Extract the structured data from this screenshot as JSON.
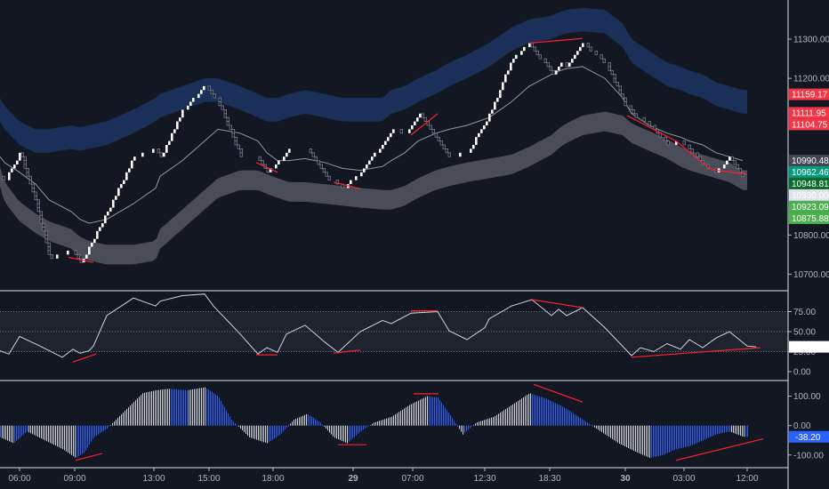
{
  "colors": {
    "background": "#131722",
    "separator": "#e0e3eb",
    "renko_up": "#ffffff",
    "renko_down": "#787b86",
    "divergence": "#ff1f2e",
    "upper_band": "#1e3a6b",
    "lower_band": "#5d606b",
    "ma": "#9598a1",
    "hist_positive": "#d1d4dc",
    "hist_negative": "#2962ff",
    "axis_text": "#b2b5be"
  },
  "chart_data": [
    {
      "type": "line",
      "panel": "price",
      "y_ticks": [
        "11300.00",
        "11200.00",
        "10800.00",
        "10700.00"
      ],
      "y_range": [
        10660,
        11400
      ],
      "price_tags": [
        {
          "label": "11159.17",
          "value": 11159.17,
          "color": "#f23645"
        },
        {
          "label": "11111.95",
          "value": 11111.95,
          "color": "#f23645"
        },
        {
          "label": "11104.75",
          "value": 11104.75,
          "color": "#f23645"
        },
        {
          "label": "10990.48",
          "value": 10990.48,
          "color": "#434651"
        },
        {
          "label": "10962.46",
          "value": 10962.46,
          "color": "#089981"
        },
        {
          "label": "10948.81",
          "value": 10948.81,
          "color": "#0b6b2e"
        },
        {
          "label": "10930.00",
          "value": 10930.0,
          "color": "#e0e3eb",
          "text_color": "#131722"
        },
        {
          "label": "10923.09",
          "value": 10923.09,
          "color": "#4caf50"
        },
        {
          "label": "10875.88",
          "value": 10875.88,
          "color": "#4caf50"
        }
      ],
      "x": [
        0,
        5,
        22,
        40,
        55,
        80,
        90,
        100,
        120,
        150,
        175,
        180,
        205,
        230,
        245,
        270,
        290,
        300,
        312,
        325,
        343,
        365,
        385,
        405,
        430,
        440,
        455,
        470,
        490,
        505,
        525,
        550,
        575,
        595,
        620,
        630,
        637,
        655,
        680,
        700,
        710,
        730,
        750,
        765,
        775,
        790,
        805,
        820,
        835
      ],
      "close": [
        10950,
        10940,
        11010,
        10880,
        10740,
        10760,
        10730,
        10770,
        10860,
        11000,
        11020,
        11000,
        11120,
        11180,
        11140,
        11000,
        10995,
        10960,
        10985,
        11020,
        11025,
        10950,
        10920,
        10960,
        11035,
        11070,
        11060,
        11110,
        11050,
        11000,
        11010,
        11110,
        11250,
        11290,
        11210,
        11240,
        11230,
        11290,
        11240,
        11140,
        11110,
        11080,
        11030,
        11040,
        11020,
        10980,
        10960,
        11000,
        10950
      ],
      "upper_band": [
        11120,
        11100,
        11060,
        11040,
        11040,
        11050,
        11045,
        11050,
        11060,
        11090,
        11120,
        11130,
        11150,
        11170,
        11170,
        11150,
        11130,
        11120,
        11120,
        11130,
        11140,
        11130,
        11120,
        11120,
        11120,
        11140,
        11150,
        11170,
        11190,
        11210,
        11230,
        11260,
        11300,
        11320,
        11330,
        11340,
        11345,
        11350,
        11345,
        11310,
        11270,
        11240,
        11210,
        11200,
        11190,
        11180,
        11160,
        11150,
        11140
      ],
      "lower_band": [
        10950,
        10910,
        10860,
        10830,
        10810,
        10790,
        10770,
        10760,
        10750,
        10750,
        10760,
        10790,
        10840,
        10890,
        10920,
        10940,
        10940,
        10930,
        10920,
        10910,
        10910,
        10905,
        10900,
        10895,
        10890,
        10890,
        10900,
        10920,
        10940,
        10950,
        10960,
        10970,
        10980,
        11000,
        11030,
        11050,
        11060,
        11080,
        11090,
        11080,
        11060,
        11040,
        11020,
        11000,
        10990,
        10980,
        10970,
        10960,
        10940
      ],
      "ma": [
        11000,
        10985,
        10960,
        10930,
        10890,
        10860,
        10840,
        10830,
        10840,
        10880,
        10920,
        10950,
        10990,
        11040,
        11070,
        11060,
        11040,
        11010,
        10990,
        10990,
        10995,
        10985,
        10970,
        10965,
        10975,
        10990,
        11010,
        11040,
        11060,
        11070,
        11080,
        11100,
        11140,
        11180,
        11210,
        11220,
        11225,
        11230,
        11200,
        11150,
        11110,
        11080,
        11060,
        11050,
        11040,
        11030,
        11010,
        11000,
        10990
      ],
      "divergences": [
        {
          "x": [
            77,
            105
          ],
          "y": [
            10743,
            10730
          ]
        },
        {
          "x": [
            288,
            312
          ],
          "y": [
            10985,
            10960
          ]
        },
        {
          "x": [
            375,
            405
          ],
          "y": [
            10935,
            10918
          ]
        },
        {
          "x": [
            462,
            492
          ],
          "y": [
            11055,
            11110
          ]
        },
        {
          "x": [
            595,
            655
          ],
          "y": [
            11290,
            11302
          ]
        },
        {
          "x": [
            705,
            760,
            800,
            840
          ],
          "y": [
            11105,
            11040,
            10967,
            10955
          ]
        }
      ]
    },
    {
      "type": "line",
      "panel": "oscillator",
      "y_ticks": [
        "75.00",
        "50.00",
        "25.00",
        "0.00"
      ],
      "y_range": [
        -10,
        100
      ],
      "last_value_label": "31.00",
      "dotted_levels": [
        75,
        50,
        25
      ],
      "x": [
        0,
        10,
        22,
        45,
        70,
        82,
        90,
        100,
        105,
        120,
        150,
        175,
        180,
        205,
        230,
        240,
        270,
        290,
        300,
        312,
        322,
        343,
        365,
        380,
        405,
        430,
        440,
        462,
        492,
        505,
        525,
        545,
        550,
        575,
        598,
        620,
        628,
        637,
        655,
        680,
        710,
        720,
        735,
        750,
        765,
        775,
        790,
        805,
        820,
        840,
        850
      ],
      "values": [
        26,
        22,
        44,
        32,
        18,
        28,
        23,
        26,
        32,
        70,
        92,
        82,
        88,
        95,
        97,
        82,
        47,
        22,
        30,
        24,
        47,
        58,
        37,
        24,
        50,
        64,
        60,
        73,
        75,
        51,
        40,
        55,
        66,
        82,
        90,
        70,
        78,
        70,
        80,
        55,
        20,
        30,
        25,
        35,
        28,
        40,
        30,
        42,
        50,
        32,
        31
      ],
      "divergences": [
        {
          "x": [
            82,
            108
          ],
          "y": [
            12,
            22
          ]
        },
        {
          "x": [
            288,
            312
          ],
          "y": [
            21,
            21
          ]
        },
        {
          "x": [
            375,
            405
          ],
          "y": [
            23,
            27
          ]
        },
        {
          "x": [
            462,
            492
          ],
          "y": [
            76,
            76
          ]
        },
        {
          "x": [
            598,
            655
          ],
          "y": [
            90,
            80
          ]
        },
        {
          "x": [
            710,
            855
          ],
          "y": [
            18,
            30
          ]
        }
      ]
    },
    {
      "type": "bar",
      "panel": "histogram",
      "y_ticks": [
        "100.00",
        "0.00",
        "-100.00"
      ],
      "y_range": [
        -140,
        150
      ],
      "last_value_label": "-38.20",
      "x": [
        0,
        15,
        30,
        50,
        70,
        85,
        95,
        105,
        120,
        140,
        160,
        175,
        190,
        210,
        230,
        245,
        260,
        280,
        300,
        315,
        330,
        345,
        360,
        375,
        390,
        405,
        420,
        440,
        460,
        480,
        492,
        505,
        520,
        535,
        555,
        575,
        595,
        615,
        635,
        655,
        675,
        695,
        715,
        730,
        745,
        760,
        775,
        790,
        805,
        820,
        835
      ],
      "values": [
        -40,
        -60,
        -20,
        -50,
        -80,
        -110,
        -90,
        -40,
        -10,
        50,
        110,
        120,
        125,
        120,
        130,
        100,
        20,
        -40,
        -60,
        -30,
        20,
        40,
        10,
        -40,
        -60,
        -20,
        10,
        30,
        70,
        100,
        95,
        40,
        -30,
        10,
        30,
        70,
        110,
        90,
        60,
        20,
        -20,
        -60,
        -90,
        -110,
        -100,
        -80,
        -70,
        -50,
        -30,
        -20,
        -38
      ],
      "divergences": [
        {
          "x": [
            85,
            115
          ],
          "y": [
            -118,
            -95
          ]
        },
        {
          "x": [
            380,
            412
          ],
          "y": [
            -65,
            -65
          ]
        },
        {
          "x": [
            465,
            493
          ],
          "y": [
            108,
            108
          ]
        },
        {
          "x": [
            600,
            655
          ],
          "y": [
            140,
            80
          ]
        },
        {
          "x": [
            760,
            858
          ],
          "y": [
            -118,
            -45
          ]
        }
      ]
    }
  ],
  "x_axis": {
    "ticks": [
      {
        "label": "06:00",
        "x": 22,
        "bold": false
      },
      {
        "label": "09:00",
        "x": 84,
        "bold": false
      },
      {
        "label": "13:00",
        "x": 173,
        "bold": false
      },
      {
        "label": "15:00",
        "x": 235,
        "bold": false
      },
      {
        "label": "18:00",
        "x": 307,
        "bold": false
      },
      {
        "label": "29",
        "x": 397,
        "bold": true
      },
      {
        "label": "07:00",
        "x": 464,
        "bold": false
      },
      {
        "label": "12:30",
        "x": 545,
        "bold": false
      },
      {
        "label": "18:30",
        "x": 618,
        "bold": false
      },
      {
        "label": "30",
        "x": 703,
        "bold": true
      },
      {
        "label": "03:00",
        "x": 769,
        "bold": false
      },
      {
        "label": "12:00",
        "x": 840,
        "bold": false
      }
    ]
  }
}
